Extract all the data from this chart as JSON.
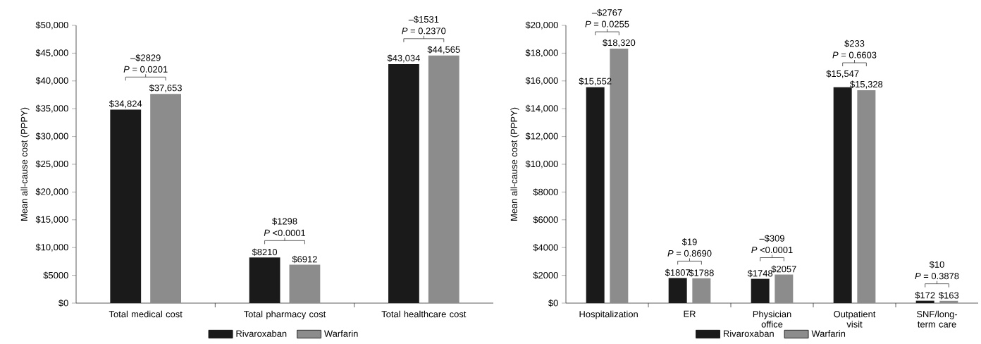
{
  "chart_data": [
    {
      "type": "bar",
      "ylabel": "Mean all-cause cost (PPPY)",
      "categories": [
        "Total medical cost",
        "Total pharmacy cost",
        "Total healthcare cost"
      ],
      "series": [
        {
          "name": "Rivaroxaban",
          "color": "#1a1a1a",
          "values": [
            34824,
            8210,
            43034
          ],
          "value_labels": [
            "$34,824",
            "$8210",
            "$43,034"
          ]
        },
        {
          "name": "Warfarin",
          "color": "#8c8c8c",
          "values": [
            37653,
            6912,
            44565
          ],
          "value_labels": [
            "$37,653",
            "$6912",
            "$44,565"
          ]
        }
      ],
      "ylim": [
        0,
        50000
      ],
      "yticks": [
        {
          "value": 0,
          "label": "$0"
        },
        {
          "value": 5000,
          "label": "$5000"
        },
        {
          "value": 10000,
          "label": "$10,000"
        },
        {
          "value": 15000,
          "label": "$15,000"
        },
        {
          "value": 20000,
          "label": "$20,000"
        },
        {
          "value": 25000,
          "label": "$25,000"
        },
        {
          "value": 30000,
          "label": "$30,000"
        },
        {
          "value": 35000,
          "label": "$35,000"
        },
        {
          "value": 40000,
          "label": "$40,000"
        },
        {
          "value": 45000,
          "label": "$45,000"
        },
        {
          "value": 50000,
          "label": "$50,000"
        }
      ],
      "annotations": [
        "–$2829",
        "*P* = 0.0201",
        "$1298",
        "*P* <0.0001",
        "–$1531",
        "*P* = 0.2370"
      ],
      "legend": "bottom"
    },
    {
      "type": "bar",
      "ylabel": "Mean all-cause cost (PPPY)",
      "categories": [
        "Hospitalization",
        "ER",
        "Physician office",
        "Outpatient visit",
        "SNF/long-term care"
      ],
      "series": [
        {
          "name": "Rivaroxaban",
          "color": "#1a1a1a",
          "values": [
            15552,
            1807,
            1748,
            15547,
            172
          ],
          "value_labels": [
            "$15,552",
            "$1807",
            "$1748",
            "$15,547",
            "$172"
          ]
        },
        {
          "name": "Warfarin",
          "color": "#8c8c8c",
          "values": [
            18320,
            1788,
            2057,
            15328,
            163
          ],
          "value_labels": [
            "$18,320",
            "$1788",
            "$2057",
            "$15,328",
            "$163"
          ]
        }
      ],
      "ylim": [
        0,
        20000
      ],
      "yticks": [
        {
          "value": 0,
          "label": "$0"
        },
        {
          "value": 2000,
          "label": "$2000"
        },
        {
          "value": 4000,
          "label": "$4000"
        },
        {
          "value": 6000,
          "label": "$6000"
        },
        {
          "value": 8000,
          "label": "$8000"
        },
        {
          "value": 10000,
          "label": "$10,000"
        },
        {
          "value": 12000,
          "label": "$12,000"
        },
        {
          "value": 14000,
          "label": "$14,000"
        },
        {
          "value": 16000,
          "label": "$16,000"
        },
        {
          "value": 18000,
          "label": "$18,000"
        },
        {
          "value": 20000,
          "label": "$20,000"
        }
      ],
      "annotations": [
        "–$2767",
        "*P* = 0.0255",
        "$19",
        "*P* = 0.8690",
        "–$309",
        "*P* <0.0001",
        "$233",
        "*P* = 0.6603",
        "$10",
        "*P* = 0.3878"
      ],
      "legend": "bottom"
    }
  ]
}
